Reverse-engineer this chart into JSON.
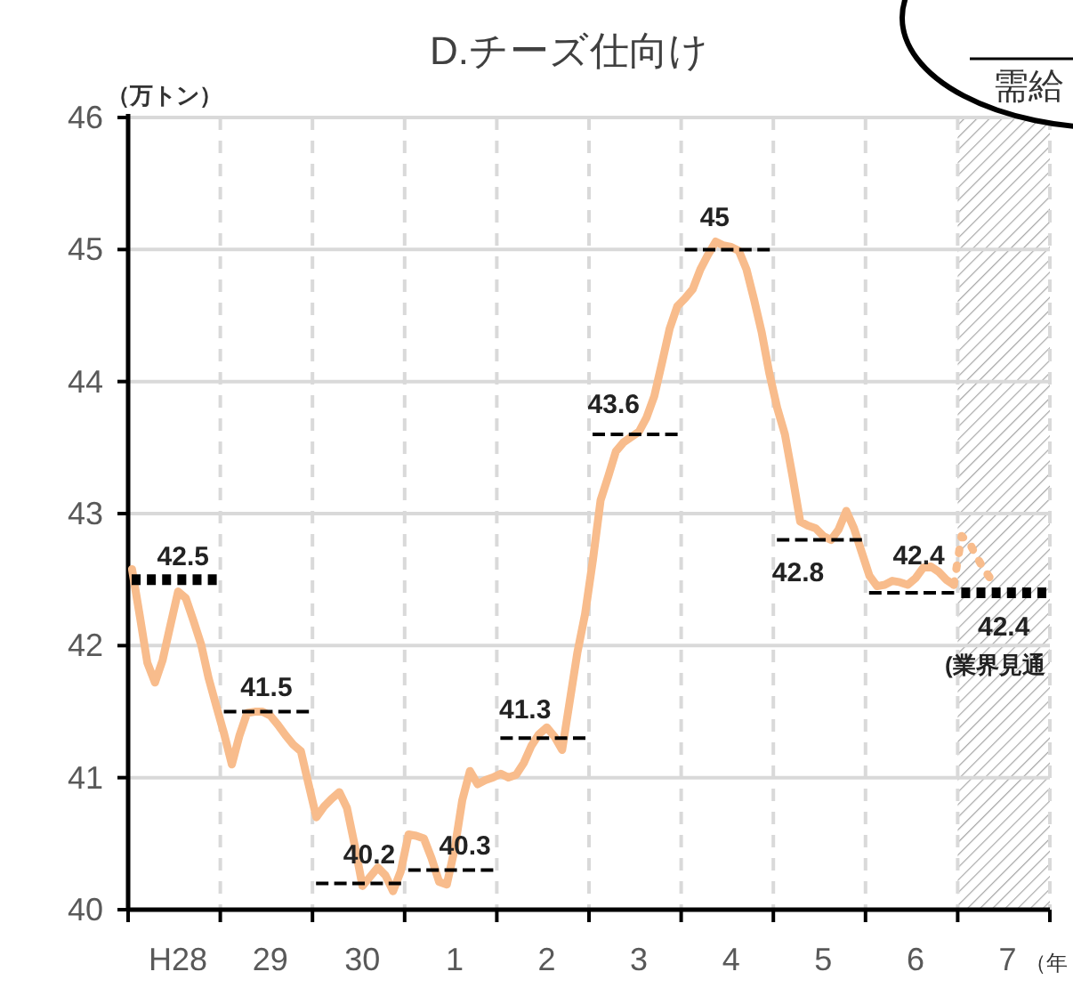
{
  "chart_data": {
    "type": "line",
    "title": "D.チーズ仕向け",
    "ylabel": "（万トン）",
    "xlabel": "（年",
    "categories": [
      null,
      null,
      null,
      null,
      null,
      null,
      "H28",
      null,
      null,
      null,
      null,
      null,
      null,
      null,
      null,
      null,
      null,
      null,
      "29",
      null,
      null,
      null,
      null,
      null,
      null,
      null,
      null,
      null,
      null,
      null,
      "30",
      null,
      null,
      null,
      null,
      null,
      null,
      null,
      null,
      null,
      null,
      null,
      "1",
      null,
      null,
      null,
      null,
      null,
      null,
      null,
      null,
      null,
      null,
      null,
      "2",
      null,
      null,
      null,
      null,
      null,
      null,
      null,
      null,
      null,
      null,
      null,
      "3",
      null,
      null,
      null,
      null,
      null,
      null,
      null,
      null,
      null,
      null,
      null,
      "4",
      null,
      null,
      null,
      null,
      null,
      null,
      null,
      null,
      null,
      null,
      null,
      "5",
      null,
      null,
      null,
      null,
      null,
      null,
      null,
      null,
      null,
      null,
      null,
      "6",
      null,
      null,
      null,
      null,
      null,
      null,
      null,
      null,
      null,
      null,
      null,
      "7",
      null,
      null,
      null,
      null,
      null
    ],
    "ylim": [
      40,
      46
    ],
    "yticks": [
      40,
      41,
      42,
      43,
      44,
      45,
      46
    ],
    "grid": true,
    "marker": "none",
    "annotations": [
      "(業界見通",
      "需給"
    ],
    "series": [
      {
        "color": "#f8bc8c",
        "line_style": "solid",
        "values": [
          42.58,
          42.23,
          41.87,
          41.72,
          41.89,
          42.15,
          42.41,
          42.36,
          42.19,
          42.01,
          41.75,
          41.54,
          41.33,
          41.1,
          41.32,
          41.49,
          41.5,
          41.5,
          41.47,
          41.4,
          41.32,
          41.25,
          41.2,
          40.95,
          40.7,
          40.78,
          40.84,
          40.89,
          40.77,
          40.49,
          40.18,
          40.25,
          40.32,
          40.26,
          40.14,
          40.29,
          40.57,
          40.56,
          40.54,
          40.39,
          40.21,
          40.19,
          40.46,
          40.83,
          41.05,
          40.95,
          40.98,
          41.0,
          41.03,
          41.0,
          41.02,
          41.11,
          41.24,
          41.33,
          41.38,
          41.31,
          41.21,
          41.58,
          41.95,
          42.24,
          42.65,
          43.1,
          43.28,
          43.47,
          43.54,
          43.58,
          43.62,
          43.73,
          43.89,
          44.14,
          44.4,
          44.57,
          44.63,
          44.7,
          44.85,
          44.96,
          45.06,
          45.03,
          45.02,
          44.99,
          44.85,
          44.62,
          44.37,
          44.06,
          43.8,
          43.6,
          43.28,
          42.94,
          42.91,
          42.89,
          42.83,
          42.8,
          42.88,
          43.02,
          42.89,
          42.71,
          42.53,
          42.45,
          42.46,
          42.49,
          42.48,
          42.46,
          42.51,
          42.59,
          42.6,
          42.56,
          42.5,
          42.46,
          null,
          null,
          null,
          null,
          null,
          null,
          null,
          null,
          null,
          null,
          null,
          null
        ]
      },
      {
        "color": "#f8bc8c",
        "line_style": "dotted",
        "values": [
          null,
          null,
          null,
          null,
          null,
          null,
          null,
          null,
          null,
          null,
          null,
          null,
          null,
          null,
          null,
          null,
          null,
          null,
          null,
          null,
          null,
          null,
          null,
          null,
          null,
          null,
          null,
          null,
          null,
          null,
          null,
          null,
          null,
          null,
          null,
          null,
          null,
          null,
          null,
          null,
          null,
          null,
          null,
          null,
          null,
          null,
          null,
          null,
          null,
          null,
          null,
          null,
          null,
          null,
          null,
          null,
          null,
          null,
          null,
          null,
          null,
          null,
          null,
          null,
          null,
          null,
          null,
          null,
          null,
          null,
          null,
          null,
          null,
          null,
          null,
          null,
          null,
          null,
          null,
          null,
          null,
          null,
          null,
          null,
          null,
          null,
          null,
          null,
          null,
          null,
          null,
          null,
          null,
          null,
          null,
          null,
          null,
          null,
          null,
          null,
          null,
          null,
          null,
          null,
          null,
          null,
          null,
          42.46,
          42.83,
          42.78,
          42.67,
          42.57,
          42.49,
          null,
          null,
          null,
          null,
          null,
          null,
          null
        ]
      },
      {
        "type": "step",
        "color": "#000000",
        "line_style": "dashed",
        "values": [
          null,
          null,
          null,
          null,
          null,
          null,
          null,
          null,
          null,
          null,
          null,
          null,
          41.5,
          41.5,
          41.5,
          41.5,
          41.5,
          41.5,
          41.5,
          41.5,
          41.5,
          41.5,
          41.5,
          41.5,
          40.2,
          40.2,
          40.2,
          40.2,
          40.2,
          40.2,
          40.2,
          40.2,
          40.2,
          40.2,
          40.2,
          40.2,
          40.3,
          40.3,
          40.3,
          40.3,
          40.3,
          40.3,
          40.3,
          40.3,
          40.3,
          40.3,
          40.3,
          40.3,
          41.3,
          41.3,
          41.3,
          41.3,
          41.3,
          41.3,
          41.3,
          41.3,
          41.3,
          41.3,
          41.3,
          41.3,
          43.6,
          43.6,
          43.6,
          43.6,
          43.6,
          43.6,
          43.6,
          43.6,
          43.6,
          43.6,
          43.6,
          43.6,
          45,
          45,
          45,
          45,
          45,
          45,
          45,
          45,
          45,
          45,
          45,
          45,
          42.8,
          42.8,
          42.8,
          42.8,
          42.8,
          42.8,
          42.8,
          42.8,
          42.8,
          42.8,
          42.8,
          42.8,
          42.4,
          42.4,
          42.4,
          42.4,
          42.4,
          42.4,
          42.4,
          42.4,
          42.4,
          42.4,
          42.4,
          42.4,
          null,
          null,
          null,
          null,
          null,
          null,
          null,
          null,
          null,
          null,
          null,
          null
        ],
        "value_labels": [
          null,
          null,
          null,
          null,
          null,
          null,
          null,
          null,
          null,
          null,
          null,
          null,
          "41.5",
          null,
          null,
          null,
          null,
          null,
          null,
          null,
          null,
          null,
          null,
          null,
          "40.2",
          null,
          null,
          null,
          null,
          null,
          null,
          null,
          null,
          null,
          null,
          null,
          "40.3",
          null,
          null,
          null,
          null,
          null,
          null,
          null,
          null,
          null,
          null,
          null,
          "41.3",
          null,
          null,
          null,
          null,
          null,
          null,
          null,
          null,
          null,
          null,
          null,
          "43.6",
          null,
          null,
          null,
          null,
          null,
          null,
          null,
          null,
          null,
          null,
          null,
          "45",
          null,
          null,
          null,
          null,
          null,
          null,
          null,
          null,
          null,
          null,
          null,
          "42.8",
          null,
          null,
          null,
          null,
          null,
          null,
          null,
          null,
          null,
          null,
          null,
          "42.4",
          null,
          null,
          null,
          null,
          null,
          null,
          null,
          null,
          null,
          null,
          null,
          null,
          null,
          null,
          null,
          null,
          null,
          null,
          null,
          null,
          null,
          null,
          null
        ]
      },
      {
        "type": "step",
        "color": "#000000",
        "line_style": "dotted",
        "values": [
          42.5,
          42.5,
          42.5,
          42.5,
          42.5,
          42.5,
          42.5,
          42.5,
          42.5,
          42.5,
          42.5,
          42.5,
          null,
          null,
          null,
          null,
          null,
          null,
          null,
          null,
          null,
          null,
          null,
          null,
          null,
          null,
          null,
          null,
          null,
          null,
          null,
          null,
          null,
          null,
          null,
          null,
          null,
          null,
          null,
          null,
          null,
          null,
          null,
          null,
          null,
          null,
          null,
          null,
          null,
          null,
          null,
          null,
          null,
          null,
          null,
          null,
          null,
          null,
          null,
          null,
          null,
          null,
          null,
          null,
          null,
          null,
          null,
          null,
          null,
          null,
          null,
          null,
          null,
          null,
          null,
          null,
          null,
          null,
          null,
          null,
          null,
          null,
          null,
          null,
          null,
          null,
          null,
          null,
          null,
          null,
          null,
          null,
          null,
          null,
          null,
          null,
          null,
          null,
          null,
          null,
          null,
          null,
          null,
          null,
          null,
          null,
          null,
          null,
          42.4,
          42.4,
          42.4,
          42.4,
          42.4,
          42.4,
          42.4,
          42.4,
          42.4,
          42.4,
          42.4,
          42.4
        ],
        "value_labels": [
          "42.5",
          null,
          null,
          null,
          null,
          null,
          null,
          null,
          null,
          null,
          null,
          null,
          null,
          null,
          null,
          null,
          null,
          null,
          null,
          null,
          null,
          null,
          null,
          null,
          null,
          null,
          null,
          null,
          null,
          null,
          null,
          null,
          null,
          null,
          null,
          null,
          null,
          null,
          null,
          null,
          null,
          null,
          null,
          null,
          null,
          null,
          null,
          null,
          null,
          null,
          null,
          null,
          null,
          null,
          null,
          null,
          null,
          null,
          null,
          null,
          null,
          null,
          null,
          null,
          null,
          null,
          null,
          null,
          null,
          null,
          null,
          null,
          null,
          null,
          null,
          null,
          null,
          null,
          null,
          null,
          null,
          null,
          null,
          null,
          null,
          null,
          null,
          null,
          null,
          null,
          null,
          null,
          null,
          null,
          null,
          null,
          null,
          null,
          null,
          null,
          null,
          null,
          null,
          null,
          null,
          null,
          null,
          null,
          "42.4",
          null,
          null,
          null,
          null,
          null,
          null,
          null,
          null,
          null,
          null,
          null
        ]
      }
    ]
  }
}
